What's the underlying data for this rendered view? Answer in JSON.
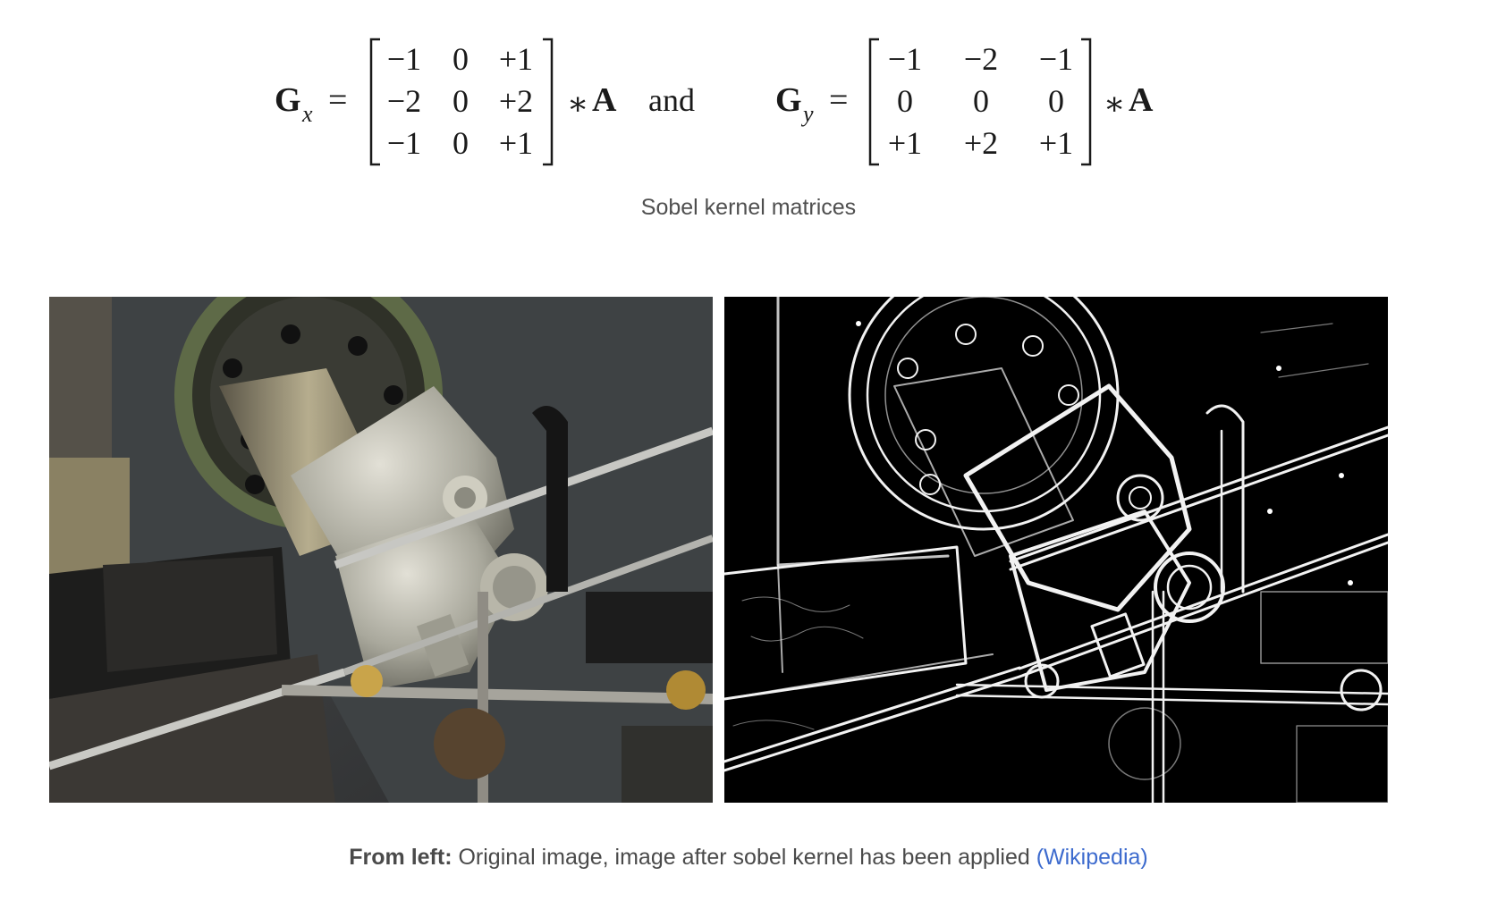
{
  "equation": {
    "gx_symbol": "G",
    "gx_subscript": "x",
    "gy_symbol": "G",
    "gy_subscript": "y",
    "equals": "=",
    "conv_operator": "∗",
    "operand": "A",
    "conjunction": "and",
    "gx_matrix": [
      [
        "−1",
        "0",
        "+1"
      ],
      [
        "−2",
        "0",
        "+2"
      ],
      [
        "−1",
        "0",
        "+1"
      ]
    ],
    "gy_matrix": [
      [
        "−1",
        "−2",
        "−1"
      ],
      [
        "0",
        "0",
        "0"
      ],
      [
        "+1",
        "+2",
        "+1"
      ]
    ]
  },
  "equation_caption": "Sobel kernel matrices",
  "figures": {
    "left_alt": "Original photograph of steam engine valve gear",
    "right_alt": "Edge map after Sobel operator applied"
  },
  "figure_caption": {
    "lead": "From left:",
    "text": " Original image, image after sobel kernel has been applied ",
    "link": "(Wikipedia)"
  },
  "colors": {
    "text": "#1a1a1a",
    "caption": "#4f4f4f",
    "link": "#3d6bce"
  }
}
